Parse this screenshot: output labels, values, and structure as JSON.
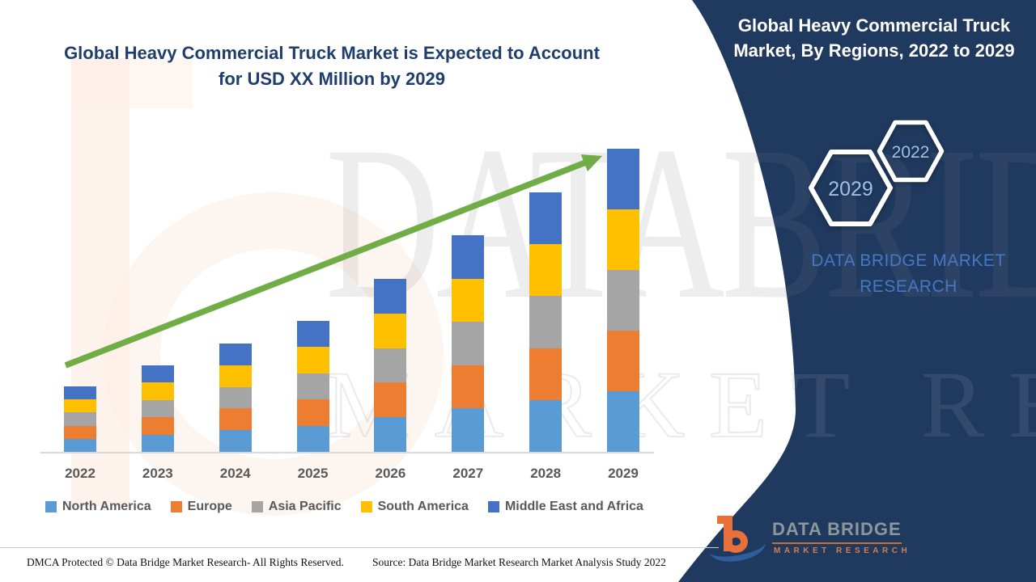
{
  "header": {
    "chart_title_line1": "Global Heavy Commercial Truck Market is Expected to Account",
    "chart_title_line2": "for USD XX Million by 2029",
    "sidebar_title": "Global Heavy Commercial Truck Market, By Regions, 2022 to 2029"
  },
  "sidebar": {
    "hexagon_back_label": "2029",
    "hexagon_front_label": "2022",
    "brand_line1": "DATA BRIDGE MARKET",
    "brand_line2": "RESEARCH"
  },
  "watermark": {
    "line1": "DATABRIDGE",
    "line2": "MARKET RESEARCH"
  },
  "footer": {
    "dmca": "DMCA Protected © Data Bridge Market Research- All Rights Reserved.",
    "source": "Source: Data Bridge Market Research Market Analysis Study 2022"
  },
  "logo": {
    "name": "DATA BRIDGE",
    "subtitle": "MARKET RESEARCH"
  },
  "colors": {
    "navy": "#20395e",
    "title_blue": "#1f3e6e",
    "brand_blue": "#4579c4",
    "hexagon_text": "#9cc0e6",
    "arrow_green": "#70ad47",
    "axis_text": "#595959",
    "axis_line": "#d9d9d9"
  },
  "chart_data": {
    "type": "bar",
    "stacked": true,
    "title": "Global Heavy Commercial Truck Market is Expected to Account for USD XX Million by 2029",
    "xlabel": "",
    "ylabel": "",
    "y_axis_visible": false,
    "grid": false,
    "legend_position": "bottom",
    "trend_arrow": true,
    "note": "No numeric axis shown; values are relative units read from bar heights (market sized as USD XX Million).",
    "categories": [
      "2022",
      "2023",
      "2024",
      "2025",
      "2026",
      "2027",
      "2028",
      "2029"
    ],
    "series": [
      {
        "name": "North America",
        "color": "#5b9bd5",
        "values": [
          16.2,
          21.4,
          26.8,
          32.4,
          42.8,
          53.6,
          64.2,
          75
        ]
      },
      {
        "name": "Europe",
        "color": "#ed7d31",
        "values": [
          16.2,
          21.4,
          26.8,
          32.4,
          42.8,
          53.6,
          64.2,
          75
        ]
      },
      {
        "name": "Asia Pacific",
        "color": "#a5a5a5",
        "values": [
          16.2,
          21.4,
          26.8,
          32.4,
          42.8,
          53.6,
          64.2,
          75
        ]
      },
      {
        "name": "South America",
        "color": "#ffc000",
        "values": [
          16.2,
          21.4,
          26.8,
          32.4,
          42.8,
          53.6,
          64.2,
          75
        ]
      },
      {
        "name": "Middle East and Africa",
        "color": "#4472c4",
        "values": [
          16.2,
          21.4,
          26.8,
          32.4,
          42.8,
          53.6,
          64.2,
          75
        ]
      }
    ],
    "stack_totals": [
      81,
      107,
      134,
      162,
      214,
      268,
      321,
      375
    ]
  }
}
